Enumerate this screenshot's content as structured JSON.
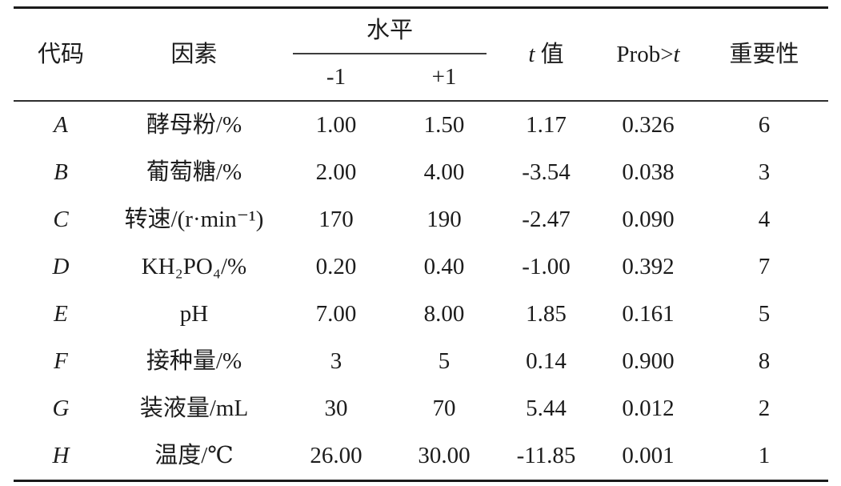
{
  "table": {
    "header": {
      "code": "代码",
      "factor": "因素",
      "level_group": "水平",
      "level_low": "-1",
      "level_high": "+1",
      "t_italic": "t",
      "t_suffix": "值",
      "prob_prefix": "Prob>",
      "prob_t": "t",
      "importance": "重要性"
    },
    "rows": [
      {
        "code": "A",
        "factor": "酵母粉/%",
        "low": "1.00",
        "high": "1.50",
        "t": "1.17",
        "prob": "0.326",
        "rank": "6"
      },
      {
        "code": "B",
        "factor": "葡萄糖/%",
        "low": "2.00",
        "high": "4.00",
        "t": "-3.54",
        "prob": "0.038",
        "rank": "3"
      },
      {
        "code": "C",
        "factor": "转速/(r·min⁻¹)",
        "low": "170",
        "high": "190",
        "t": "-2.47",
        "prob": "0.090",
        "rank": "4"
      },
      {
        "code": "D",
        "factor": "KH₂PO₄/%",
        "low": "0.20",
        "high": "0.40",
        "t": "-1.00",
        "prob": "0.392",
        "rank": "7"
      },
      {
        "code": "E",
        "factor": "pH",
        "low": "7.00",
        "high": "8.00",
        "t": "1.85",
        "prob": "0.161",
        "rank": "5"
      },
      {
        "code": "F",
        "factor": "接种量/%",
        "low": "3",
        "high": "5",
        "t": "0.14",
        "prob": "0.900",
        "rank": "8"
      },
      {
        "code": "G",
        "factor": "装液量/mL",
        "low": "30",
        "high": "70",
        "t": "5.44",
        "prob": "0.012",
        "rank": "2"
      },
      {
        "code": "H",
        "factor": "温度/℃",
        "low": "26.00",
        "high": "30.00",
        "t": "-11.85",
        "prob": "0.001",
        "rank": "1"
      }
    ]
  },
  "colors": {
    "text": "#1c1c1c",
    "rule_thick": "#1b1b1b",
    "rule_thin": "#2e2e2e"
  }
}
